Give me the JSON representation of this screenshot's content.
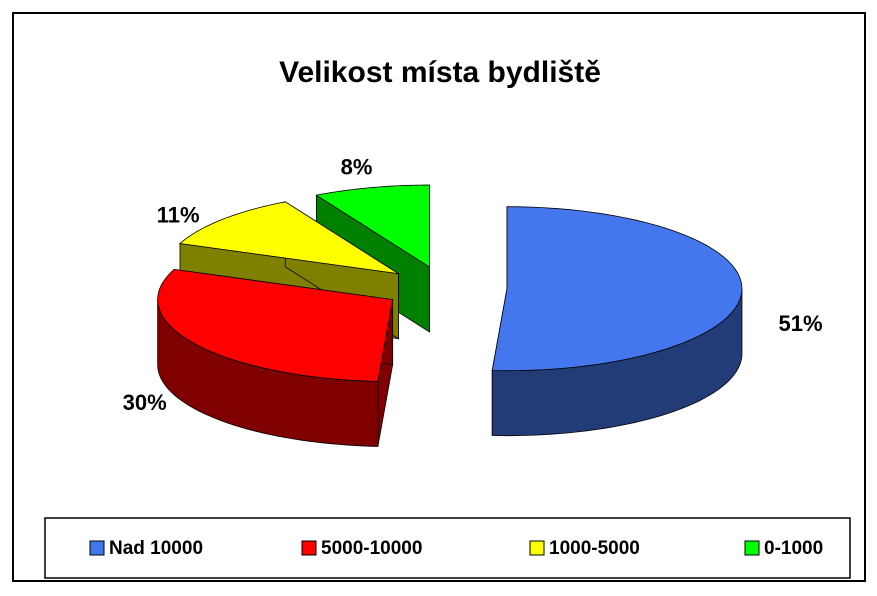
{
  "chart_data": {
    "type": "pie3d",
    "title": "Velikost místa bydliště",
    "categories": [
      "Nad 10000",
      "5000-10000",
      "1000-5000",
      "0-1000"
    ],
    "values": [
      51,
      30,
      11,
      8
    ],
    "value_labels": [
      "51%",
      "30%",
      "11%",
      "8%"
    ],
    "colors": [
      "#4477ee",
      "#ff0000",
      "#ffff00",
      "#00ff00"
    ],
    "legend": "bottom"
  }
}
